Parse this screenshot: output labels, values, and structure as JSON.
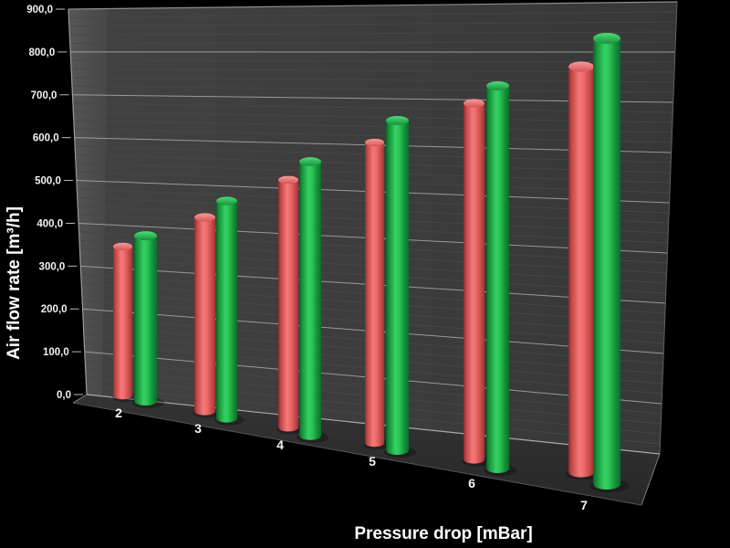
{
  "chart_data": {
    "type": "bar",
    "style": "3d-cylinder-bars",
    "title": "",
    "xlabel": "Pressure drop [mBar]",
    "ylabel": "Air flow rate [m³/h]",
    "categories": [
      "2",
      "3",
      "4",
      "5",
      "6",
      "7"
    ],
    "series": [
      {
        "name": "series-red",
        "color": "#ee6a6a",
        "values": [
          350,
          420,
          510,
          600,
          690,
          770
        ]
      },
      {
        "name": "series-green",
        "color": "#2cc457",
        "values": [
          380,
          460,
          550,
          650,
          730,
          830
        ]
      }
    ],
    "ylim": [
      0,
      900
    ],
    "ytick_step": 100,
    "ytick_labels": [
      "0,0",
      "100,0",
      "200,0",
      "300,0",
      "400,0",
      "500,0",
      "600,0",
      "700,0",
      "800,0",
      "900,0"
    ],
    "minor_grid_step": 20,
    "grid": true,
    "legend": false,
    "colors": {
      "background": "#000000",
      "wall": "#3a3a3a",
      "wall_left_band": "#4d4d4d",
      "floor": "#2e2e2e",
      "major_gridline": "#b0b0b0",
      "minor_gridline": "#484848",
      "text": "#ffffff"
    }
  }
}
